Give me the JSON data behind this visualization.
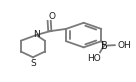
{
  "bg_color": "#ffffff",
  "line_color": "#7a7a7a",
  "text_color": "#1a1a1a",
  "line_width": 1.3,
  "font_size": 6.5,
  "figsize": [
    1.36,
    0.82
  ],
  "dpi": 100,
  "label_O": "O",
  "label_N": "N",
  "label_S": "S",
  "label_B": "B",
  "label_OH_right": "OH",
  "label_HO_bottom": "HO"
}
